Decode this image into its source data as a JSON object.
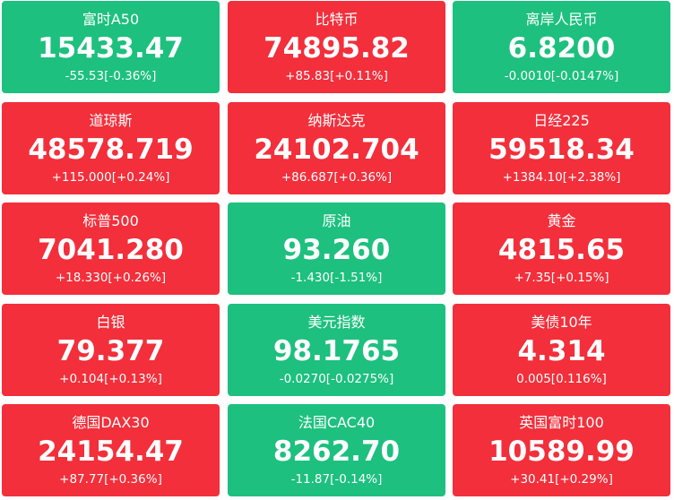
{
  "colors": {
    "up": "#f22f3b",
    "down": "#1dc07e",
    "text": "#ffffff"
  },
  "tiles": [
    {
      "name": "富时A50",
      "price": "15433.47",
      "change": "-55.53[-0.36%]",
      "trend": "down"
    },
    {
      "name": "比特币",
      "price": "74895.82",
      "change": "+85.83[+0.11%]",
      "trend": "up"
    },
    {
      "name": "离岸人民币",
      "price": "6.8200",
      "change": "-0.0010[-0.0147%]",
      "trend": "down"
    },
    {
      "name": "道琼斯",
      "price": "48578.719",
      "change": "+115.000[+0.24%]",
      "trend": "up"
    },
    {
      "name": "纳斯达克",
      "price": "24102.704",
      "change": "+86.687[+0.36%]",
      "trend": "up"
    },
    {
      "name": "日经225",
      "price": "59518.34",
      "change": "+1384.10[+2.38%]",
      "trend": "up"
    },
    {
      "name": "标普500",
      "price": "7041.280",
      "change": "+18.330[+0.26%]",
      "trend": "up"
    },
    {
      "name": "原油",
      "price": "93.260",
      "change": "-1.430[-1.51%]",
      "trend": "down"
    },
    {
      "name": "黄金",
      "price": "4815.65",
      "change": "+7.35[+0.15%]",
      "trend": "up"
    },
    {
      "name": "白银",
      "price": "79.377",
      "change": "+0.104[+0.13%]",
      "trend": "up"
    },
    {
      "name": "美元指数",
      "price": "98.1765",
      "change": "-0.0270[-0.0275%]",
      "trend": "down"
    },
    {
      "name": "美债10年",
      "price": "4.314",
      "change": "0.005[0.116%]",
      "trend": "up"
    },
    {
      "name": "德国DAX30",
      "price": "24154.47",
      "change": "+87.77[+0.36%]",
      "trend": "up"
    },
    {
      "name": "法国CAC40",
      "price": "8262.70",
      "change": "-11.87[-0.14%]",
      "trend": "down"
    },
    {
      "name": "英国富时100",
      "price": "10589.99",
      "change": "+30.41[+0.29%]",
      "trend": "up"
    }
  ]
}
